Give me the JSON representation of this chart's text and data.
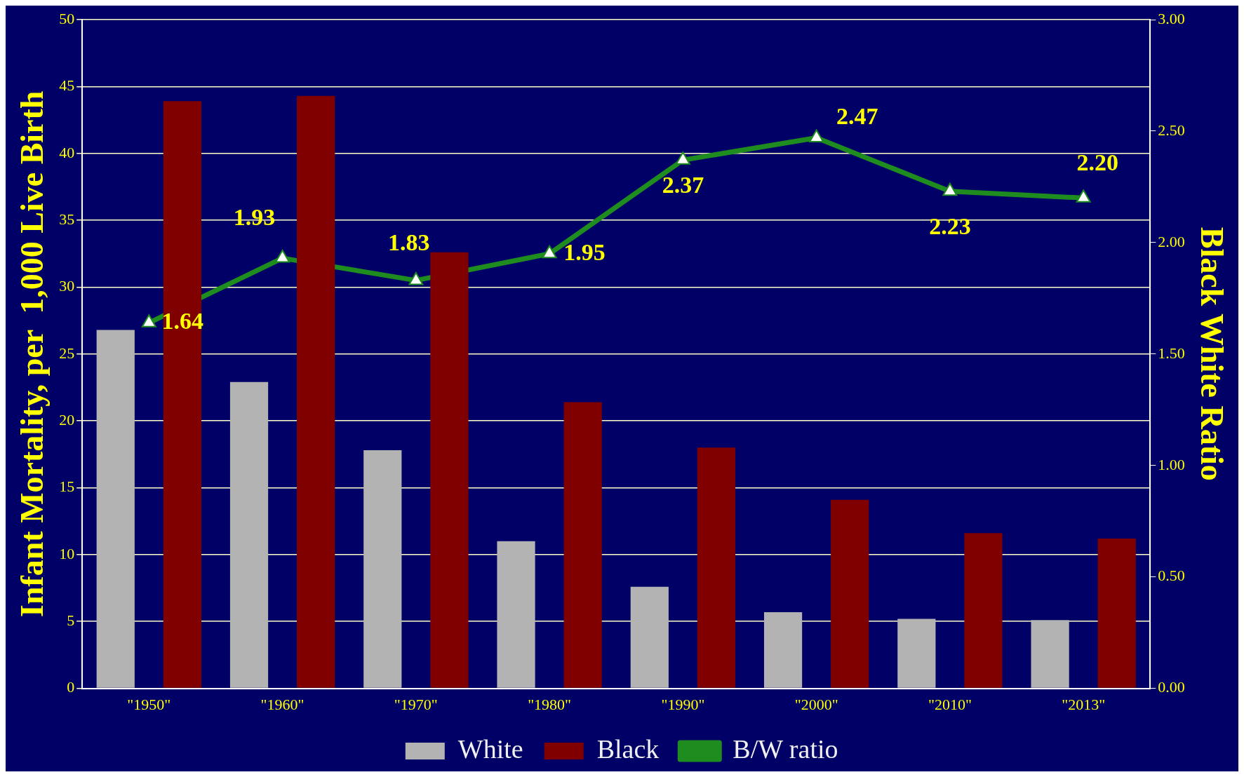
{
  "chart_data": {
    "type": "bar",
    "categories": [
      "\"1950\"",
      "\"1960\"",
      "\"1970\"",
      "\"1980\"",
      "\"1990\"",
      "\"2000\"",
      "\"2010\"",
      "\"2013\""
    ],
    "ylabel": "Infant Mortality, per  1,000 Live Birth",
    "y2label": "Black White Ratio",
    "series": [
      {
        "name": "White",
        "color": "#b3b3b3",
        "values": [
          26.8,
          22.9,
          17.8,
          11.0,
          7.6,
          5.7,
          5.2,
          5.1
        ]
      },
      {
        "name": "Black",
        "color": "#800000",
        "values": [
          43.9,
          44.3,
          32.6,
          21.4,
          18.0,
          14.1,
          11.6,
          11.2
        ]
      },
      {
        "name": "B/W ratio",
        "type": "line",
        "axis": "y2",
        "color": "#1e8c1e",
        "marker": "triangle",
        "values": [
          1.64,
          1.93,
          1.83,
          1.95,
          2.37,
          2.47,
          2.23,
          2.2
        ],
        "value_labels": [
          "1.64",
          "1.93",
          "1.83",
          "1.95",
          "2.37",
          "2.47",
          "2.23",
          "2.20"
        ]
      }
    ],
    "ylim": [
      0,
      50
    ],
    "yticks": [
      0,
      5,
      10,
      15,
      20,
      25,
      30,
      35,
      40,
      45,
      50
    ],
    "y2lim": [
      0,
      3
    ],
    "y2ticks": [
      {
        "value": 0,
        "label": "0.00"
      },
      {
        "value": 0.5,
        "label": "0.50"
      },
      {
        "value": 1,
        "label": "1.00"
      },
      {
        "value": 1.5,
        "label": "1.50"
      },
      {
        "value": 2,
        "label": "2.00"
      },
      {
        "value": 2.5,
        "label": "2.50"
      },
      {
        "value": 3,
        "label": "3.00"
      }
    ],
    "grid": "y",
    "legend": "bottom"
  }
}
